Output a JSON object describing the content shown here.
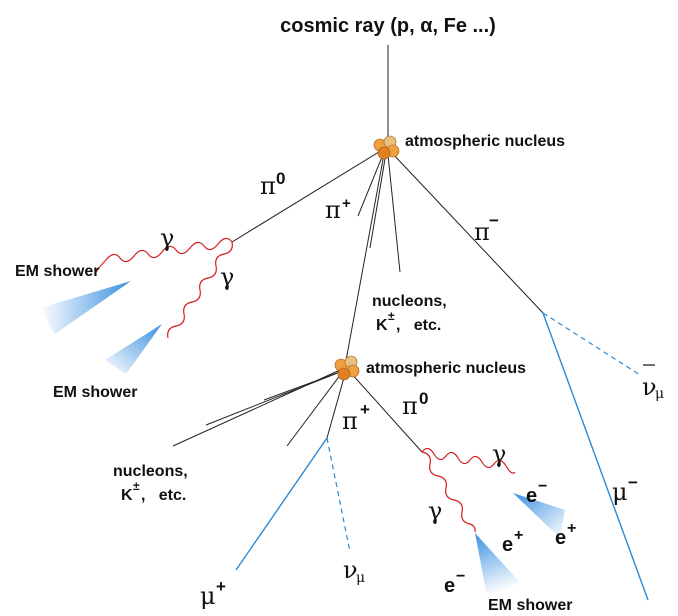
{
  "labels": {
    "cosmic_ray": "cosmic ray (p, α, Fe ...)",
    "nucleus_top": "atmospheric nucleus",
    "nucleus_mid": "atmospheric nucleus",
    "pi0_top": "π",
    "pi0_top_sup": "0",
    "pi_plus_top": "π",
    "pi_plus_top_sup": "+",
    "pi_minus_top": "π",
    "pi_minus_top_sup": "−",
    "gamma_1": "γ",
    "gamma_2": "γ",
    "em_shower_1": "EM shower",
    "em_shower_2": "EM shower",
    "nucleons_mid_1": "nucleons,",
    "nucleons_mid_2": "K",
    "nucleons_mid_sup": "±",
    "nucleons_mid_3": ",   etc.",
    "nu_mu_bar": "ν",
    "nu_mu_bar_sub": "μ",
    "pi_plus_bot": "π",
    "pi_plus_bot_sup": "+",
    "pi0_bot": "π",
    "pi0_bot_sup": "0",
    "nucleons_left_1": "nucleons,",
    "nucleons_left_2": "K",
    "nucleons_left_sup": "±",
    "nucleons_left_3": ",   etc.",
    "gamma_3": "γ",
    "gamma_4": "γ",
    "e_minus_1": "e",
    "e_minus_1_sup": "−",
    "e_plus_1": "e",
    "e_plus_1_sup": "+",
    "e_plus_2": "e",
    "e_plus_2_sup": "+",
    "e_minus_2": "e",
    "e_minus_2_sup": "−",
    "mu_minus": "μ",
    "mu_minus_sup": "−",
    "mu_plus": "μ",
    "mu_plus_sup": "+",
    "nu_mu": "ν",
    "nu_mu_sub": "μ",
    "em_shower_3": "EM shower"
  },
  "colors": {
    "muon": "#2a8ad6",
    "photon": "#d42020",
    "nucleus": "#f08a1c",
    "shower": "#3b8fe0"
  }
}
